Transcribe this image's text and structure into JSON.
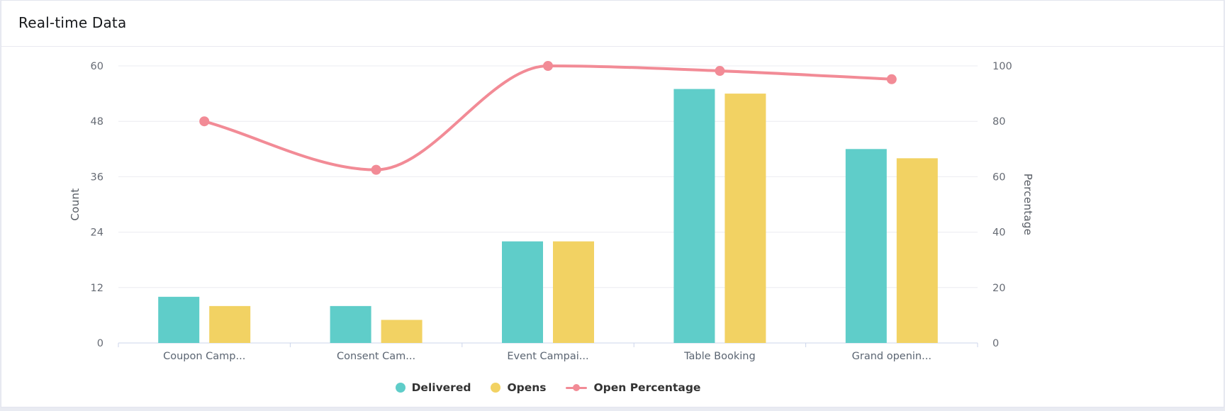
{
  "card": {
    "title": "Real-time Data"
  },
  "chart_data": {
    "type": "combo-bar-line",
    "title": "Real-time Data",
    "categories": [
      "Coupon Camp...",
      "Consent Cam...",
      "Event Campai...",
      "Table Booking",
      "Grand openin..."
    ],
    "series": [
      {
        "name": "Delivered",
        "type": "bar",
        "axis": "left",
        "color": "#5fcdc9",
        "values": [
          10,
          8,
          22,
          55,
          42
        ]
      },
      {
        "name": "Opens",
        "type": "bar",
        "axis": "left",
        "color": "#f2d263",
        "values": [
          8,
          5,
          22,
          54,
          40
        ]
      },
      {
        "name": "Open Percentage",
        "type": "line",
        "axis": "right",
        "color": "#f28b96",
        "values": [
          80,
          62.5,
          100,
          98.2,
          95.2
        ]
      }
    ],
    "left_axis": {
      "label": "Count",
      "min": 0,
      "max": 60,
      "ticks": [
        0,
        12,
        24,
        36,
        48,
        60
      ]
    },
    "right_axis": {
      "label": "Percentage",
      "min": 0,
      "max": 100,
      "ticks": [
        0,
        20,
        40,
        60,
        80,
        100
      ]
    },
    "legend_position": "bottom-center",
    "grid": true,
    "colors": {
      "grid_line": "#ebecf0",
      "axis_line": "#ccd6eb",
      "tick_text": "#666b74",
      "category_text": "#5b6572",
      "axis_title_text": "#575c64",
      "legend_text": "#333333"
    }
  }
}
